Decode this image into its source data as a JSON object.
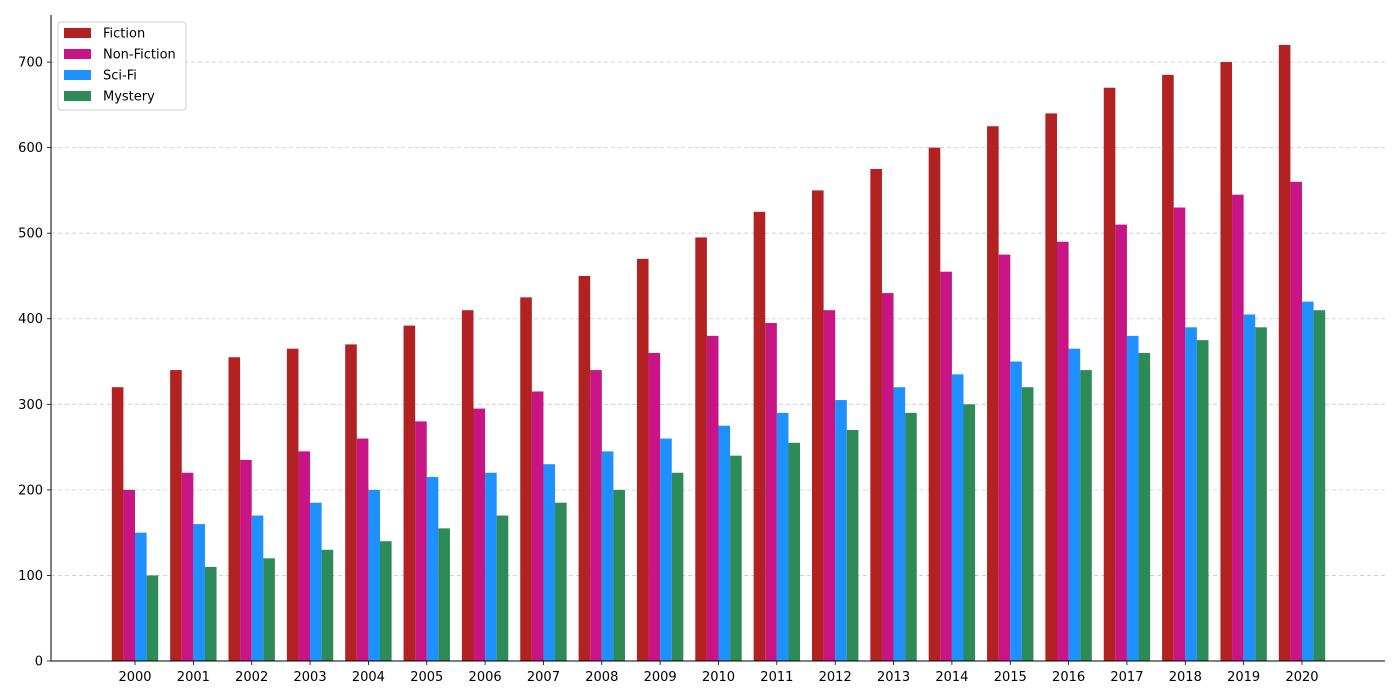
{
  "chart_data": {
    "type": "bar",
    "title": "",
    "xlabel": "",
    "ylabel": "",
    "ylim": [
      0,
      755
    ],
    "yticks": [
      0,
      100,
      200,
      300,
      400,
      500,
      600,
      700
    ],
    "grid": "horizontal-dashed",
    "legend_position": "top-left",
    "categories": [
      "2000",
      "2001",
      "2002",
      "2003",
      "2004",
      "2005",
      "2006",
      "2007",
      "2008",
      "2009",
      "2010",
      "2011",
      "2012",
      "2013",
      "2014",
      "2015",
      "2016",
      "2017",
      "2018",
      "2019",
      "2020"
    ],
    "series": [
      {
        "name": "Fiction",
        "color": "#b22222",
        "values": [
          320,
          340,
          355,
          365,
          370,
          392,
          410,
          425,
          450,
          470,
          495,
          525,
          550,
          575,
          600,
          625,
          640,
          670,
          685,
          700,
          720
        ]
      },
      {
        "name": "Non-Fiction",
        "color": "#c71585",
        "values": [
          200,
          220,
          235,
          245,
          260,
          280,
          295,
          315,
          340,
          360,
          380,
          395,
          410,
          430,
          455,
          475,
          490,
          510,
          530,
          545,
          560
        ]
      },
      {
        "name": "Sci-Fi",
        "color": "#1e90ff",
        "values": [
          150,
          160,
          170,
          185,
          200,
          215,
          220,
          230,
          245,
          260,
          275,
          290,
          305,
          320,
          335,
          350,
          365,
          380,
          390,
          405,
          420
        ]
      },
      {
        "name": "Mystery",
        "color": "#2e8b57",
        "values": [
          100,
          110,
          120,
          130,
          140,
          155,
          170,
          185,
          200,
          220,
          240,
          255,
          270,
          290,
          300,
          320,
          340,
          360,
          375,
          390,
          410
        ]
      }
    ]
  }
}
